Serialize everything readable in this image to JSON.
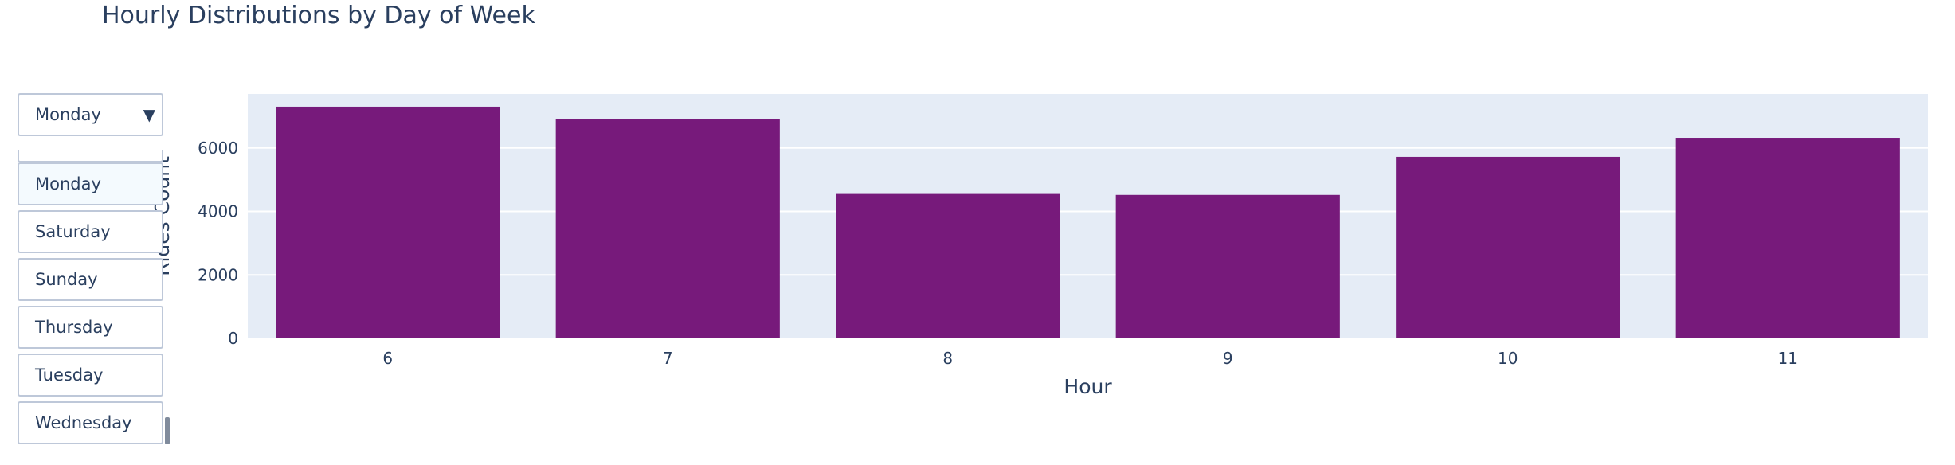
{
  "chart_data": {
    "type": "bar",
    "title": "Hourly Distributions by Day of Week",
    "xlabel": "Hour",
    "ylabel": "Rides Count",
    "categories": [
      "6",
      "7",
      "8",
      "9",
      "10",
      "11"
    ],
    "values": [
      7300,
      6900,
      4550,
      4520,
      5720,
      6320
    ],
    "ylim": [
      0,
      7700
    ],
    "yticks": [
      0,
      2000,
      4000,
      6000
    ],
    "bar_color": "#771a7b",
    "plot_bg": "#e5ecf6",
    "grid": true,
    "legend": "none"
  },
  "dropdown": {
    "selected": "Monday",
    "arrow_icon": "triangle-down-icon",
    "options": [
      "Monday",
      "Saturday",
      "Sunday",
      "Thursday",
      "Tuesday",
      "Wednesday"
    ]
  }
}
